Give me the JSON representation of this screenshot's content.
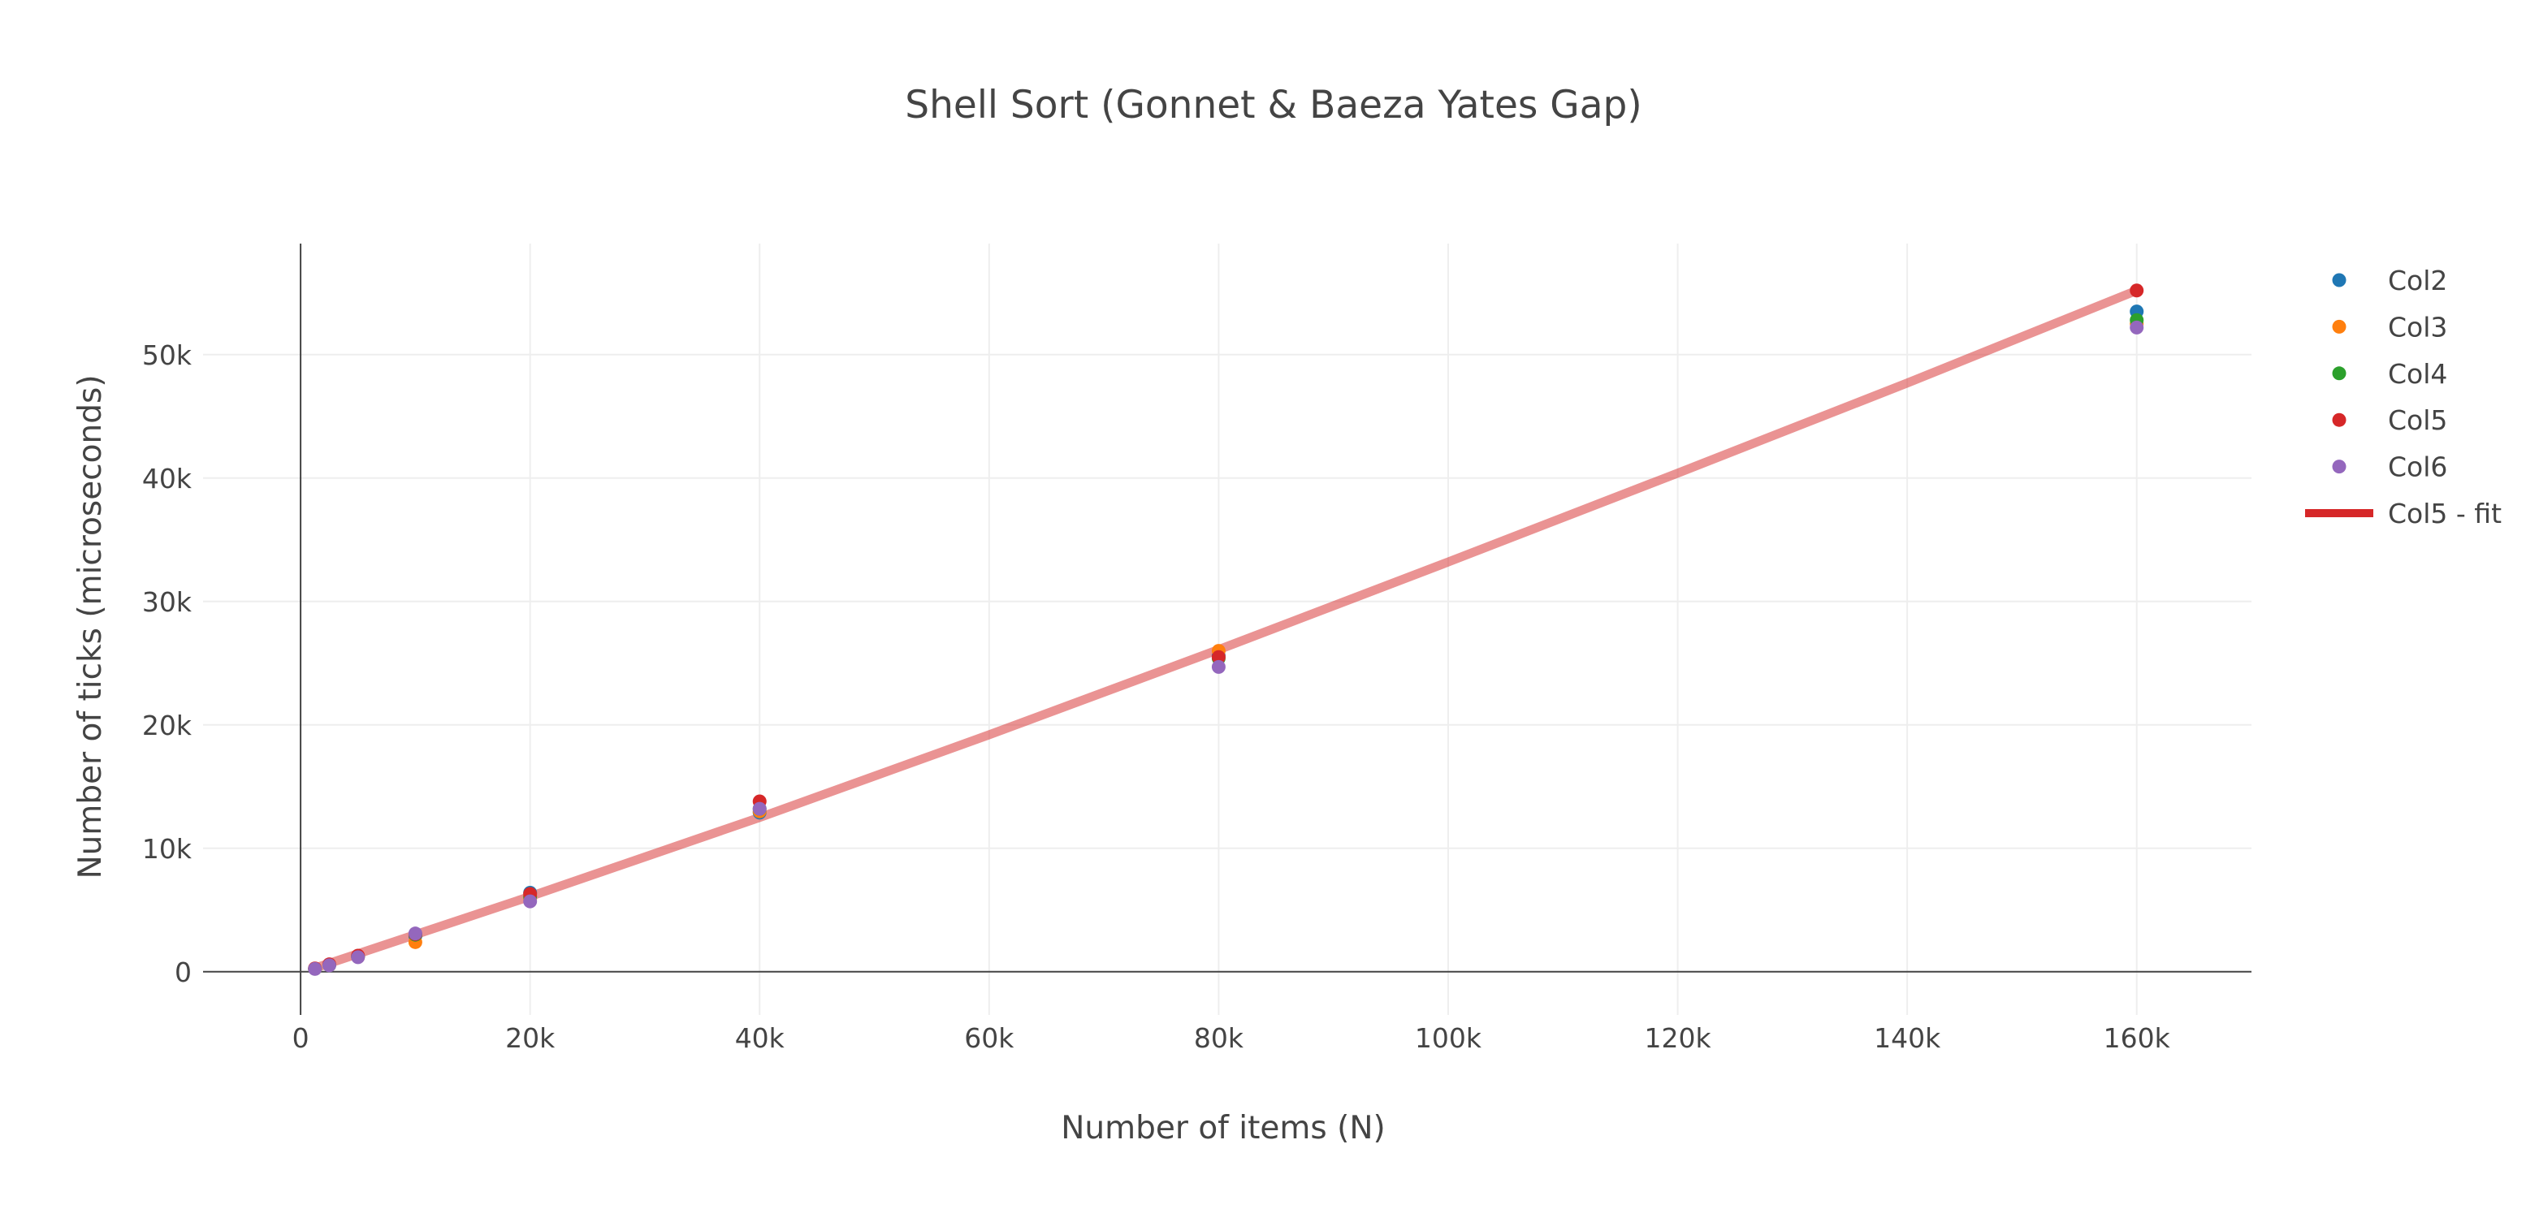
{
  "chart_data": {
    "type": "scatter",
    "title": "Shell Sort (Gonnet & Baeza Yates Gap)",
    "xlabel": "Number of items (N)",
    "ylabel": "Number of ticks (microseconds)",
    "xlim": [
      -8500,
      170000
    ],
    "ylim": [
      -3500,
      59000
    ],
    "x_ticks": [
      0,
      20000,
      40000,
      60000,
      80000,
      100000,
      120000,
      140000,
      160000
    ],
    "x_tick_labels": [
      "0",
      "20k",
      "40k",
      "60k",
      "80k",
      "100k",
      "120k",
      "140k",
      "160k"
    ],
    "y_ticks": [
      0,
      10000,
      20000,
      30000,
      40000,
      50000
    ],
    "y_tick_labels": [
      "0",
      "10k",
      "20k",
      "30k",
      "40k",
      "50k"
    ],
    "grid": true,
    "legend_position": "top-right",
    "x": [
      1250,
      2500,
      5000,
      10000,
      20000,
      40000,
      80000,
      160000
    ],
    "series": [
      {
        "name": "Col2",
        "kind": "markers",
        "color": "#1f77b4",
        "values": [
          250,
          550,
          1250,
          2900,
          6400,
          12900,
          25600,
          53500
        ]
      },
      {
        "name": "Col3",
        "kind": "markers",
        "color": "#ff7f0e",
        "values": [
          260,
          580,
          1200,
          2400,
          5900,
          13000,
          26000,
          52500
        ]
      },
      {
        "name": "Col4",
        "kind": "markers",
        "color": "#2ca02c",
        "values": [
          240,
          540,
          1220,
          3000,
          6100,
          13200,
          25400,
          52800
        ]
      },
      {
        "name": "Col5",
        "kind": "markers",
        "color": "#d62728",
        "values": [
          270,
          600,
          1300,
          3050,
          6300,
          13800,
          25500,
          55200
        ]
      },
      {
        "name": "Col6",
        "kind": "markers",
        "color": "#9467bd",
        "values": [
          230,
          520,
          1180,
          3100,
          5700,
          13200,
          24700,
          52200
        ]
      },
      {
        "name": "Col5 - fit",
        "kind": "line",
        "color": "#d62728",
        "x": [
          1250,
          20000,
          40000,
          60000,
          80000,
          100000,
          120000,
          140000,
          160000
        ],
        "values": [
          300,
          6100,
          12500,
          19200,
          26100,
          33200,
          40400,
          47700,
          55200
        ]
      }
    ]
  }
}
